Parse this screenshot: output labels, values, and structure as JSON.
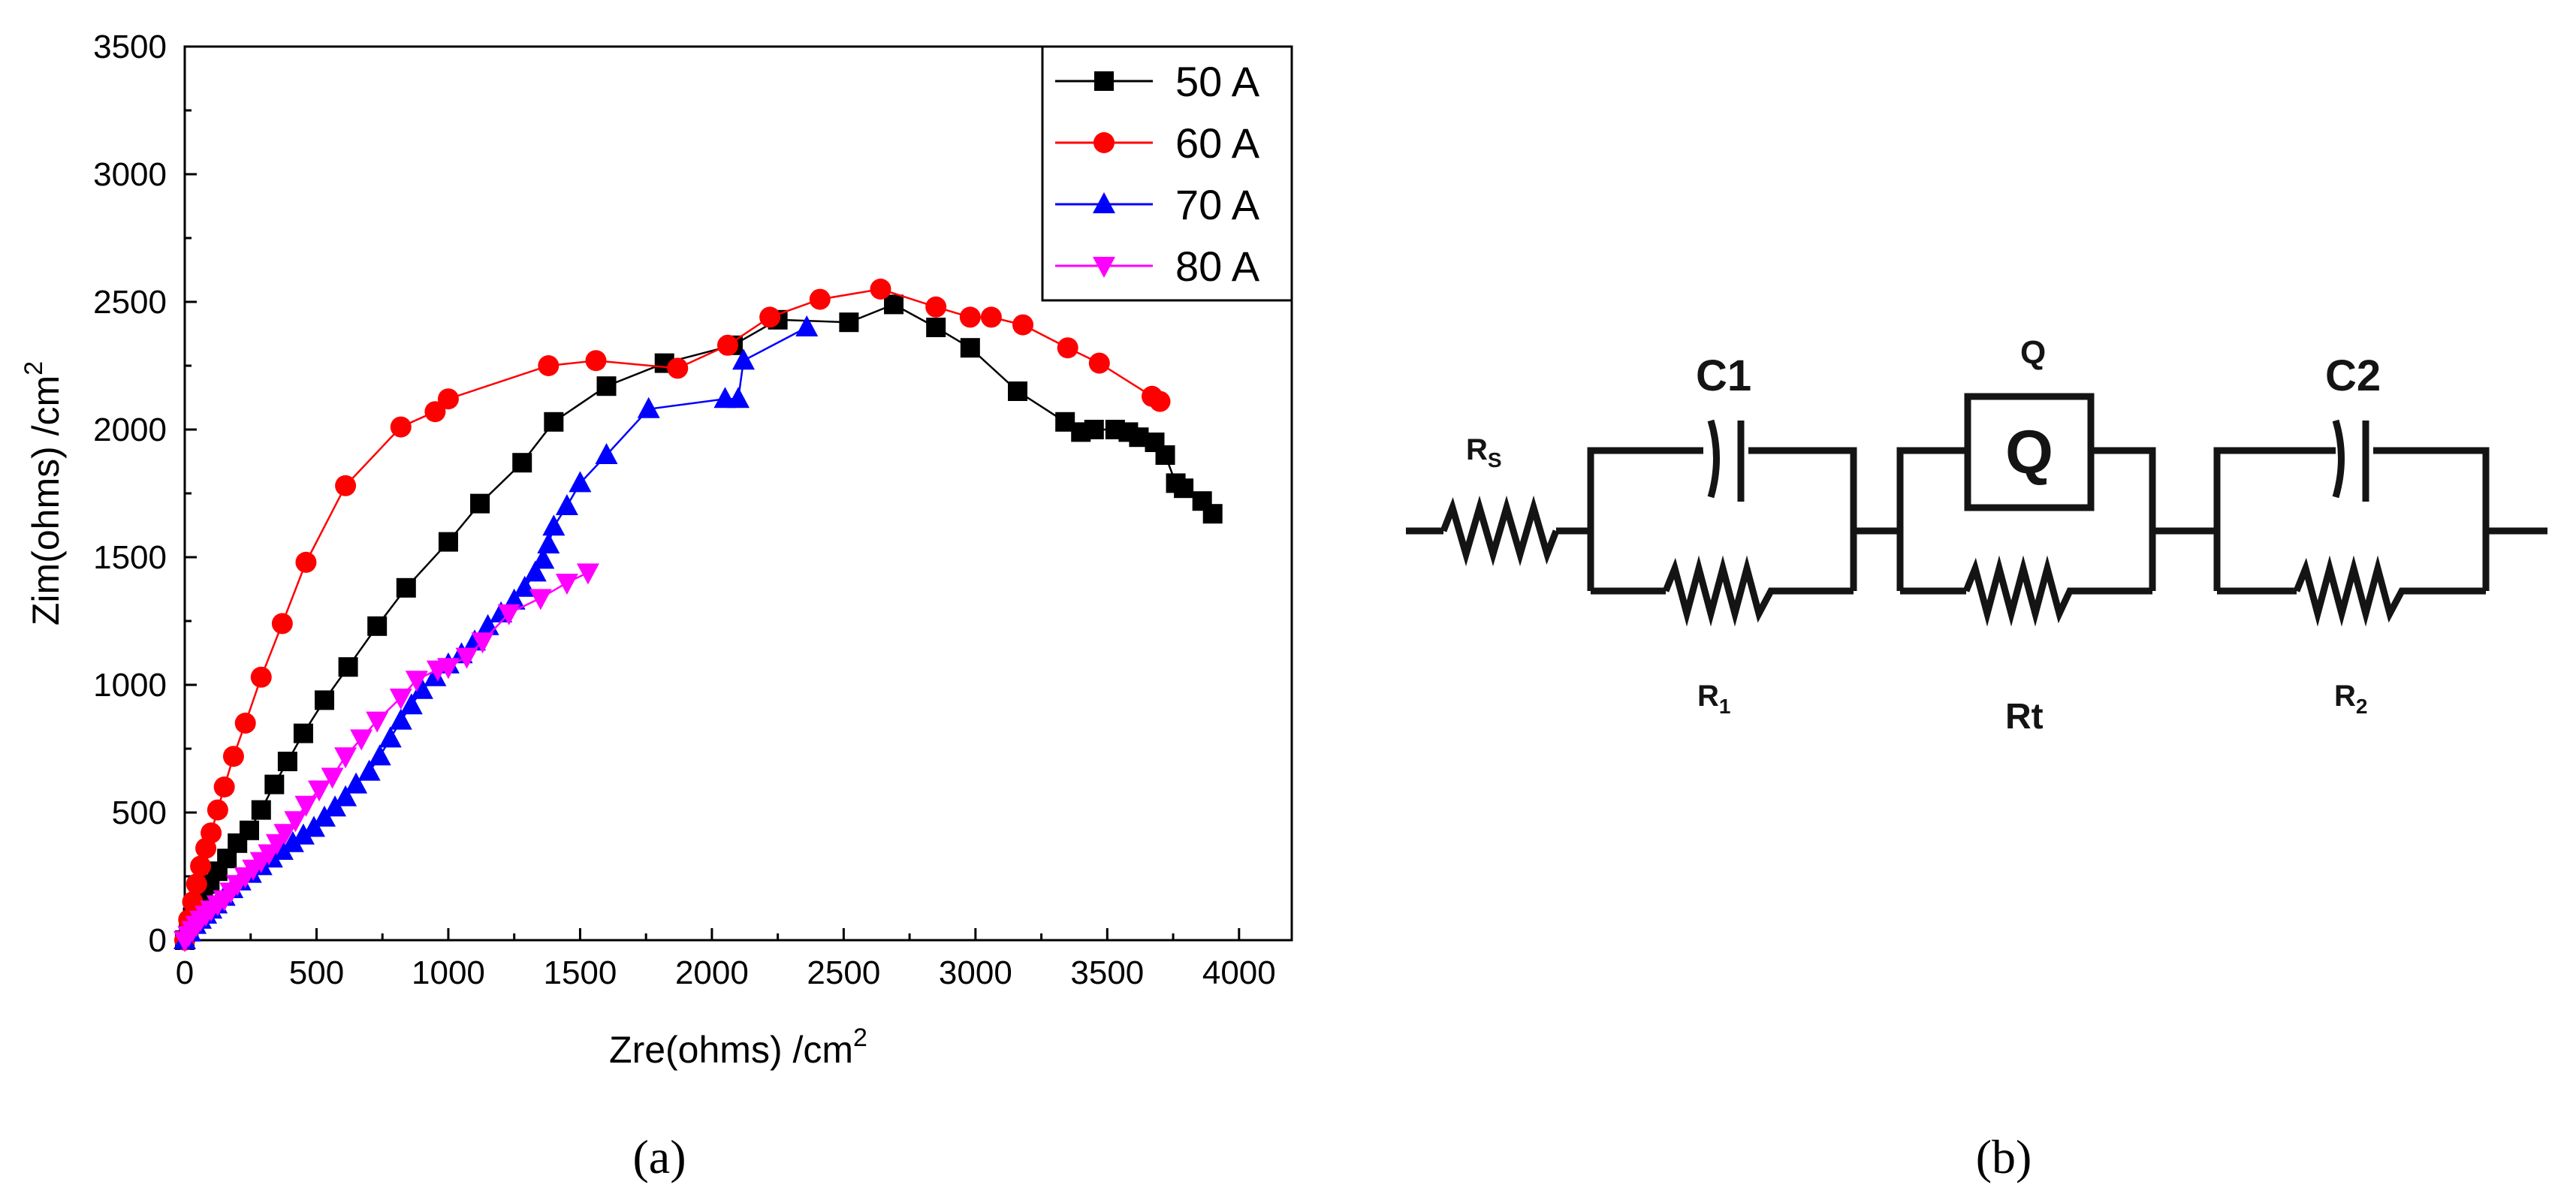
{
  "chart_data": {
    "type": "scatter",
    "title": "",
    "xlabel": "Zre(ohms) /cm",
    "xlabel_sup": "2",
    "ylabel": "Zim(ohms) /cm",
    "ylabel_sup": "2",
    "xlim": [
      0,
      4200
    ],
    "ylim": [
      0,
      3500
    ],
    "xticks": [
      0,
      500,
      1000,
      1500,
      2000,
      2500,
      3000,
      3500,
      4000
    ],
    "yticks": [
      0,
      500,
      1000,
      1500,
      2000,
      2500,
      3000,
      3500
    ],
    "grid": false,
    "legend_position": "top-right",
    "series": [
      {
        "name": "50 A",
        "color": "#000000",
        "marker": "square",
        "x": [
          0,
          15,
          30,
          50,
          70,
          95,
          125,
          160,
          200,
          245,
          290,
          340,
          390,
          450,
          530,
          620,
          730,
          840,
          1000,
          1120,
          1280,
          1400,
          1600,
          1820,
          2080,
          2250,
          2520,
          2690,
          2850,
          2980,
          3160,
          3340,
          3400,
          3450,
          3530,
          3580,
          3620,
          3680,
          3720,
          3760,
          3790,
          3860,
          3900
        ],
        "y": [
          0,
          50,
          90,
          130,
          170,
          220,
          270,
          320,
          380,
          430,
          510,
          610,
          700,
          810,
          940,
          1070,
          1230,
          1380,
          1560,
          1710,
          1870,
          2030,
          2170,
          2260,
          2330,
          2430,
          2420,
          2490,
          2400,
          2320,
          2150,
          2030,
          1990,
          2000,
          2000,
          1990,
          1970,
          1950,
          1900,
          1790,
          1770,
          1720,
          1670
        ]
      },
      {
        "name": "60 A",
        "color": "#ff0000",
        "marker": "circle",
        "x": [
          0,
          15,
          30,
          45,
          60,
          80,
          100,
          125,
          150,
          185,
          230,
          290,
          370,
          460,
          610,
          820,
          950,
          1000,
          1380,
          1560,
          1870,
          2060,
          2220,
          2410,
          2640,
          2850,
          2980,
          3060,
          3180,
          3350,
          3470,
          3670,
          3700
        ],
        "y": [
          0,
          80,
          150,
          220,
          290,
          360,
          420,
          510,
          600,
          720,
          850,
          1030,
          1240,
          1480,
          1780,
          2010,
          2070,
          2120,
          2250,
          2270,
          2240,
          2330,
          2440,
          2510,
          2550,
          2480,
          2440,
          2440,
          2410,
          2320,
          2260,
          2130,
          2110
        ]
      },
      {
        "name": "70 A",
        "color": "#0000ff",
        "marker": "triangle-up",
        "x": [
          0,
          20,
          40,
          60,
          80,
          100,
          120,
          150,
          180,
          210,
          250,
          290,
          330,
          370,
          410,
          450,
          490,
          530,
          570,
          610,
          650,
          700,
          740,
          780,
          820,
          860,
          900,
          950,
          1000,
          1050,
          1100,
          1150,
          1200,
          1250,
          1290,
          1330,
          1360,
          1380,
          1400,
          1450,
          1500,
          1600,
          1760,
          2050,
          2100,
          2120,
          2360
        ],
        "y": [
          0,
          30,
          60,
          80,
          100,
          120,
          140,
          170,
          200,
          230,
          260,
          290,
          320,
          350,
          380,
          410,
          440,
          480,
          520,
          560,
          610,
          660,
          720,
          790,
          860,
          920,
          980,
          1030,
          1080,
          1120,
          1170,
          1230,
          1280,
          1330,
          1380,
          1440,
          1490,
          1550,
          1620,
          1700,
          1790,
          1900,
          2080,
          2120,
          2120,
          2270,
          2400
        ]
      },
      {
        "name": "80 A",
        "color": "#ff00ff",
        "marker": "triangle-down",
        "x": [
          0,
          15,
          30,
          45,
          60,
          80,
          100,
          125,
          150,
          175,
          200,
          230,
          260,
          290,
          320,
          350,
          380,
          420,
          460,
          510,
          560,
          610,
          670,
          730,
          820,
          880,
          960,
          1000,
          1070,
          1130,
          1230,
          1350,
          1450,
          1530
        ],
        "y": [
          0,
          20,
          40,
          60,
          80,
          100,
          120,
          140,
          160,
          190,
          220,
          250,
          280,
          310,
          340,
          380,
          420,
          470,
          530,
          590,
          640,
          720,
          790,
          860,
          950,
          1020,
          1060,
          1070,
          1110,
          1170,
          1280,
          1340,
          1400,
          1440
        ]
      }
    ]
  },
  "circuit": {
    "labels": {
      "rs": "R",
      "rs_sub": "S",
      "c1": "C1",
      "q_top": "Q",
      "q_box": "Q",
      "c2": "C2",
      "r1": "R",
      "r1_sub": "1",
      "rt": "Rt",
      "r2": "R",
      "r2_sub": "2"
    }
  },
  "panel_labels": {
    "a": "(a)",
    "b": "(b)"
  }
}
